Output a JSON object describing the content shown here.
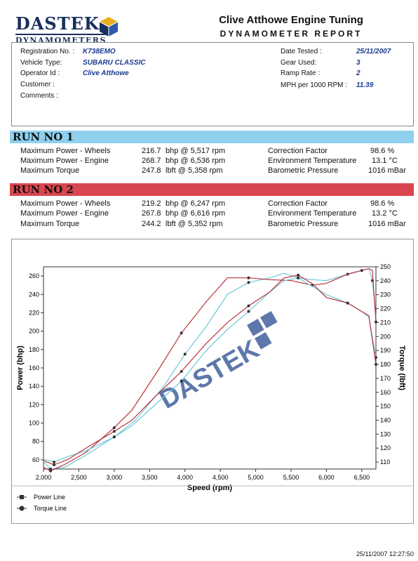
{
  "header": {
    "logo_line1": "DASTEK",
    "logo_line2": "DYNAMOMETERS",
    "company": "Clive Atthowe Engine Tuning",
    "report_title": "DYNAMOMETER REPORT"
  },
  "info": {
    "registration_label": "Registration No. :",
    "registration_value": "K738EMO",
    "vehicle_label": "Vehicle Type:",
    "vehicle_value": "SUBARU CLASSIC",
    "operator_label": "Operator Id :",
    "operator_value": "Clive Atthowe",
    "customer_label": "Customer :",
    "comments_label": "Comments :",
    "date_label": "Date Tested :",
    "date_value": "25/11/2007",
    "gear_label": "Gear Used:",
    "gear_value": "3",
    "ramp_label": "Ramp Rate :",
    "ramp_value": "2",
    "mph_label": "MPH per 1000 RPM :",
    "mph_value": "11.39"
  },
  "runs": [
    {
      "title": "RUN NO 1",
      "rows": [
        {
          "label": "Maximum Power - Wheels",
          "value": "216.7",
          "unit": "bhp @ 5,517 rpm",
          "k": "Correction Factor",
          "v": "98.6 %"
        },
        {
          "label": "Maximum Power - Engine",
          "value": "268.7",
          "unit": "bhp @ 6,536 rpm",
          "k": "Environment Temperature",
          "v": "13.1 °C"
        },
        {
          "label": "Maximum Torque",
          "value": "247.8",
          "unit": "lbft @ 5,358 rpm",
          "k": "Barometric Pressure",
          "v": "1016 mBar"
        }
      ]
    },
    {
      "title": "RUN NO 2",
      "rows": [
        {
          "label": "Maximum Power - Wheels",
          "value": "219.2",
          "unit": "bhp @ 6,247 rpm",
          "k": "Correction Factor",
          "v": "98.6 %"
        },
        {
          "label": "Maximum Power - Engine",
          "value": "267.8",
          "unit": "bhp @ 6,616 rpm",
          "k": "Environment Temperature",
          "v": "13.2 °C"
        },
        {
          "label": "Maximum Torque",
          "value": "244.2",
          "unit": "lbft @ 5,352 rpm",
          "k": "Barometric Pressure",
          "v": "1016 mBar"
        }
      ]
    }
  ],
  "chart_data": {
    "type": "line",
    "xlabel": "Speed (rpm)",
    "ylabel_left": "Power (bhp)",
    "ylabel_right": "Torque (lbft)",
    "watermark": "DASTEK",
    "xlim": [
      2000,
      6700
    ],
    "ylim_left": [
      50,
      270
    ],
    "ylim_right": [
      105,
      250
    ],
    "x_ticks": [
      "2,000",
      "2,500",
      "3,000",
      "3,500",
      "4,000",
      "4,500",
      "5,000",
      "5,500",
      "6,000",
      "6,500"
    ],
    "y_ticks_left": [
      "60",
      "80",
      "100",
      "120",
      "140",
      "160",
      "180",
      "200",
      "220",
      "240",
      "260"
    ],
    "y_ticks_right": [
      "110",
      "120",
      "130",
      "140",
      "150",
      "160",
      "170",
      "180",
      "190",
      "200",
      "210",
      "220",
      "230",
      "240",
      "250"
    ],
    "legend": [
      {
        "name": "Power Line",
        "marker": "square"
      },
      {
        "name": "Torque Line",
        "marker": "circle"
      }
    ],
    "series": [
      {
        "name": "Power Run 1",
        "axis": "left",
        "color": "#6cc8d8",
        "x": [
          2000,
          2100,
          2300,
          2600,
          3000,
          3300,
          3700,
          4000,
          4300,
          4600,
          4900,
          5200,
          5400,
          5600,
          5800,
          6000,
          6300,
          6500,
          6600,
          6650,
          6700
        ],
        "y": [
          58,
          50,
          52,
          65,
          85,
          103,
          140,
          175,
          205,
          240,
          253,
          258,
          263,
          258,
          256,
          255,
          262,
          266,
          268,
          255,
          215
        ]
      },
      {
        "name": "Power Run 2",
        "axis": "left",
        "color": "#b8323c",
        "x": [
          2000,
          2100,
          2300,
          2600,
          3000,
          3250,
          3600,
          3950,
          4300,
          4600,
          4900,
          5200,
          5500,
          5800,
          6000,
          6300,
          6500,
          6600,
          6650,
          6700
        ],
        "y": [
          52,
          48,
          55,
          68,
          95,
          114,
          155,
          198,
          232,
          258,
          258,
          256,
          255,
          250,
          252,
          262,
          266,
          268,
          266,
          210
        ]
      },
      {
        "name": "Torque Run 1",
        "axis": "right",
        "color": "#6cc8d8",
        "x": [
          2000,
          2150,
          2350,
          2600,
          3000,
          3250,
          3600,
          3950,
          4300,
          4600,
          4900,
          5200,
          5400,
          5600,
          5800,
          6000,
          6300,
          6500,
          6600,
          6700
        ],
        "y": [
          112,
          110,
          114,
          118,
          128,
          136,
          152,
          168,
          190,
          205,
          218,
          232,
          240,
          242,
          236,
          230,
          224,
          218,
          214,
          185
        ]
      },
      {
        "name": "Torque Run 2",
        "axis": "right",
        "color": "#b8323c",
        "x": [
          2000,
          2150,
          2350,
          2600,
          3000,
          3250,
          3600,
          3950,
          4300,
          4600,
          4900,
          5200,
          5400,
          5600,
          5800,
          6000,
          6300,
          6500,
          6600,
          6700
        ],
        "y": [
          111,
          108,
          112,
          120,
          132,
          140,
          158,
          175,
          195,
          210,
          222,
          232,
          242,
          244,
          238,
          228,
          224,
          218,
          215,
          180
        ]
      }
    ]
  },
  "footer": {
    "timestamp": "25/11/2007 12:27:50"
  }
}
